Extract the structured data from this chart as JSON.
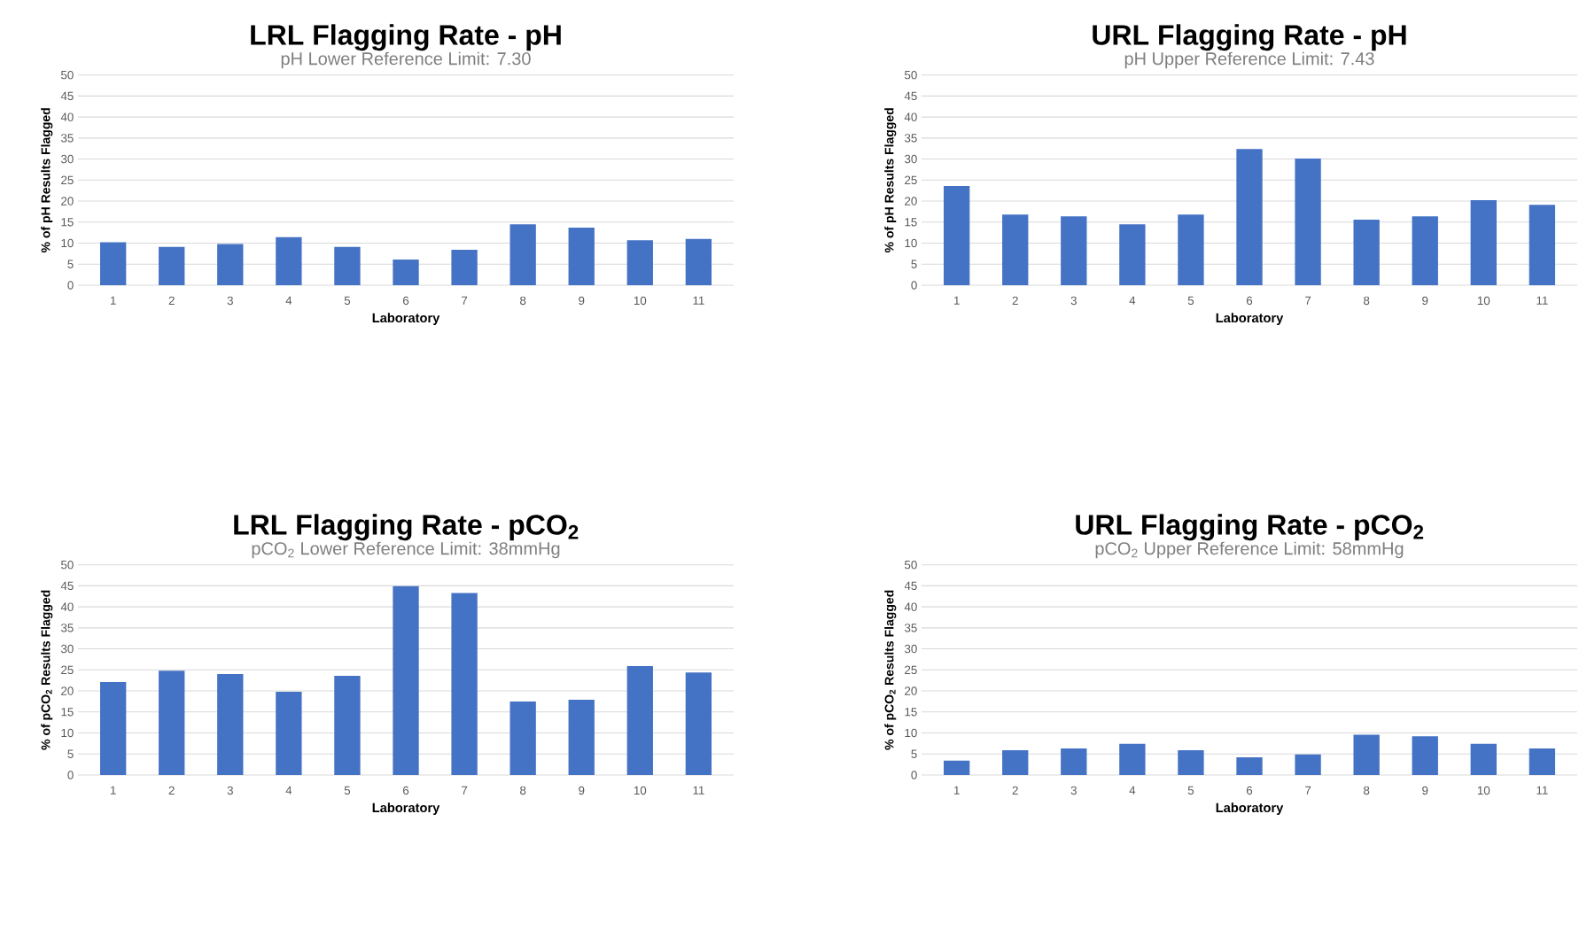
{
  "chart_data": [
    {
      "type": "bar",
      "title": "LRL Flagging Rate - pH",
      "subtitle": "pH Lower Reference Limit: 7.30",
      "xlabel": "Laboratory",
      "ylabel": "% of pH Results Flagged",
      "categories": [
        "1",
        "2",
        "3",
        "4",
        "5",
        "6",
        "7",
        "8",
        "9",
        "10",
        "11"
      ],
      "values": [
        10.2,
        9.1,
        9.8,
        11.4,
        9.1,
        6.1,
        8.4,
        14.5,
        13.7,
        10.7,
        11.0
      ],
      "color": "#4472c4",
      "ylim": [
        0,
        50
      ],
      "yticks": [
        0,
        5,
        10,
        15,
        20,
        25,
        30,
        35,
        40,
        45,
        50
      ],
      "grid": "y"
    },
    {
      "type": "bar",
      "title": "URL Flagging Rate - pH",
      "subtitle": "pH Upper Reference Limit: 7.43",
      "xlabel": "Laboratory",
      "ylabel": "% of pH Results Flagged",
      "categories": [
        "1",
        "2",
        "3",
        "4",
        "5",
        "6",
        "7",
        "8",
        "9",
        "10",
        "11"
      ],
      "values": [
        23.6,
        16.8,
        16.4,
        14.5,
        16.8,
        32.4,
        30.1,
        15.6,
        16.4,
        20.2,
        19.1
      ],
      "color": "#4472c4",
      "ylim": [
        0,
        50
      ],
      "yticks": [
        0,
        5,
        10,
        15,
        20,
        25,
        30,
        35,
        40,
        45,
        50
      ],
      "grid": "y"
    },
    {
      "type": "bar",
      "title": "LRL Flagging Rate - pCO$_{2}$",
      "subtitle": "pCO$_{2}$ Lower Reference Limit: 38mmHg",
      "xlabel": "Laboratory",
      "ylabel": "% of pCO$_{2}$ Results Flagged",
      "categories": [
        "1",
        "2",
        "3",
        "4",
        "5",
        "6",
        "7",
        "8",
        "9",
        "10",
        "11"
      ],
      "values": [
        22.1,
        24.8,
        24.0,
        19.8,
        23.6,
        44.9,
        43.3,
        17.5,
        17.9,
        25.9,
        24.4
      ],
      "color": "#4472c4",
      "ylim": [
        0,
        50
      ],
      "yticks": [
        0,
        5,
        10,
        15,
        20,
        25,
        30,
        35,
        40,
        45,
        50
      ],
      "grid": "y"
    },
    {
      "type": "bar",
      "title": "URL Flagging Rate - pCO$_{2}$",
      "subtitle": "pCO$_{2}$ Upper Reference Limit: 58mmHg",
      "xlabel": "Laboratory",
      "ylabel": "% of pCO$_{2}$ Results Flagged",
      "categories": [
        "1",
        "2",
        "3",
        "4",
        "5",
        "6",
        "7",
        "8",
        "9",
        "10",
        "11"
      ],
      "values": [
        3.4,
        5.9,
        6.3,
        7.4,
        5.9,
        4.2,
        4.9,
        9.6,
        9.2,
        7.4,
        6.3
      ],
      "color": "#4472c4",
      "ylim": [
        0,
        50
      ],
      "yticks": [
        0,
        5,
        10,
        15,
        20,
        25,
        30,
        35,
        40,
        45,
        50
      ],
      "grid": "y"
    }
  ]
}
